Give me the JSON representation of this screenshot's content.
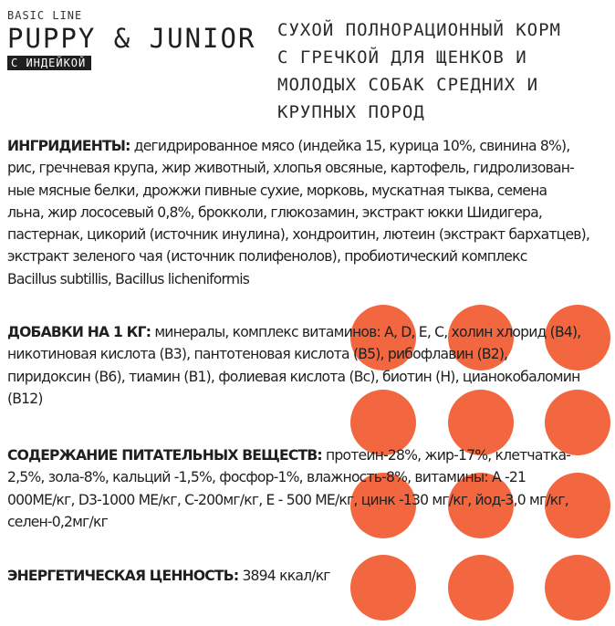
{
  "brand": {
    "line_label": "BASIC LINE",
    "product_name": "PUPPY & JUNIOR",
    "flavor": "С ИНДЕЙКОЙ"
  },
  "description_lines": [
    "СУХОЙ ПОЛНОРАЦИОННЫЙ КОРМ",
    "С ГРЕЧКОЙ ДЛЯ ЩЕНКОВ И",
    "МОЛОДЫХ СОБАК СРЕДНИХ И",
    "КРУПНЫХ ПОРОД"
  ],
  "ingredients": {
    "heading": "ИНГРИДИЕНТЫ:",
    "lines": [
      " дегидрированное мясо (индейка 15, курица 10%, свинина 8%),",
      "рис, гречневая крупа, жир животный, хлопья овсяные, картофель, гидролизован-",
      "ные мясные белки, дрожжи пивные сухие, морковь, мускатная тыква, семена",
      "льна, жир лососевый 0,8%, брокколи, глюкозамин, экстракт юкки Шидигера,",
      "пастернак, цикорий (источник инулина), хондроитин, лютеин (экстракт бархатцев),",
      "экстракт зеленого чая (источник полифенолов), пробиотический комплекс",
      "Bacillus subtillis, Bacillus licheniformis"
    ]
  },
  "additives": {
    "heading": "ДОБАВКИ НА 1 КГ:",
    "lines": [
      " минералы, комплекс витаминов: A, D, E, C, холин хлорид (B4),",
      "никотиновая кислота (B3), пантотеновая кислота (B5), рибофлавин (B2),",
      "пиридоксин (B6), тиамин (B1), фолиевая кислота (Bc), биотин (H), цианокобаломин",
      "(B12)"
    ]
  },
  "nutrients": {
    "heading": "СОДЕРЖАНИЕ ПИТАТЕЛЬНЫХ ВЕЩЕСТВ:",
    "lines": [
      " протеин-28%, жир-17%, клетчатка-",
      "2,5%, зола-8%, кальций -1,5%, фосфор-1%, влажность-8%, витамины: А -21",
      "000МЕ/кг, D3-1000 МЕ/кг, С-200мг/кг, Е - 500 МЕ/кг, цинк -130 мг/кг, йод-3,0 мг/кг,",
      "селен-0,2мг/кг"
    ]
  },
  "energy": {
    "heading": "ЭНЕРГЕТИЧЕСКАЯ ЦЕННОСТЬ:",
    "value": " 3894 ккал/кг"
  },
  "colors": {
    "dot": "#f2673f",
    "text": "#1f1f1f",
    "background": "#ffffff"
  }
}
